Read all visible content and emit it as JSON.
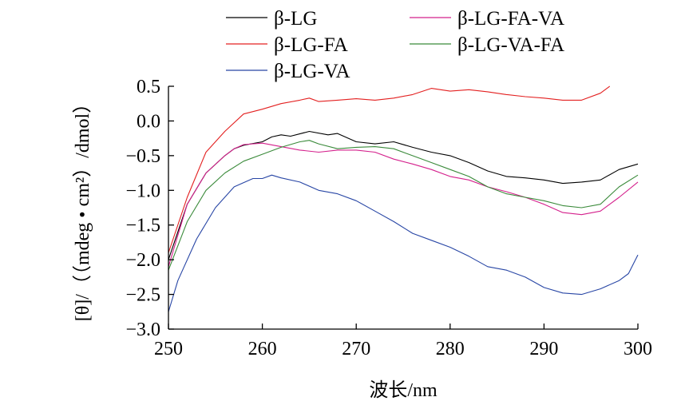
{
  "chart_data": {
    "type": "line",
    "xlabel": "波长/nm",
    "ylabel": "[θ]/（（mdeg • cm²）/dmol）",
    "xlim": [
      250,
      300
    ],
    "ylim": [
      -3.0,
      0.5
    ],
    "xticks": [
      250,
      260,
      270,
      280,
      290,
      300
    ],
    "xtick_labels": [
      "250",
      "260",
      "270",
      "280",
      "290",
      "300"
    ],
    "yticks": [
      0.5,
      0.0,
      -0.5,
      -1.0,
      -1.5,
      -2.0,
      -2.5,
      -3.0
    ],
    "ytick_labels": [
      "0.5",
      "0.0",
      "−0.5",
      "−1.0",
      "−1.5",
      "−2.0",
      "−2.5",
      "−3.0"
    ],
    "grid": false,
    "legend_position": "top",
    "series": [
      {
        "name": "β-LG",
        "color": "#000000",
        "x": [
          250,
          252,
          254,
          256,
          257,
          258,
          260,
          261,
          262,
          263,
          265,
          267,
          268,
          270,
          272,
          274,
          276,
          278,
          280,
          282,
          284,
          286,
          288,
          290,
          292,
          294,
          296,
          298,
          300
        ],
        "y": [
          -2.0,
          -1.2,
          -0.75,
          -0.5,
          -0.4,
          -0.35,
          -0.3,
          -0.23,
          -0.2,
          -0.22,
          -0.15,
          -0.2,
          -0.18,
          -0.3,
          -0.33,
          -0.3,
          -0.38,
          -0.45,
          -0.5,
          -0.6,
          -0.72,
          -0.8,
          -0.82,
          -0.85,
          -0.9,
          -0.88,
          -0.85,
          -0.7,
          -0.62
        ]
      },
      {
        "name": "β-LG-FA",
        "color": "#e32020",
        "x": [
          250,
          252,
          254,
          256,
          258,
          260,
          262,
          264,
          265,
          266,
          268,
          270,
          272,
          274,
          276,
          278,
          280,
          282,
          284,
          286,
          288,
          290,
          292,
          294,
          296,
          297
        ],
        "y": [
          -1.9,
          -1.1,
          -0.45,
          -0.15,
          0.1,
          0.17,
          0.25,
          0.3,
          0.33,
          0.28,
          0.3,
          0.32,
          0.3,
          0.33,
          0.38,
          0.47,
          0.43,
          0.45,
          0.42,
          0.38,
          0.35,
          0.33,
          0.3,
          0.3,
          0.4,
          0.5
        ]
      },
      {
        "name": "β-LG-VA",
        "color": "#2846a5",
        "x": [
          250,
          251,
          253,
          255,
          257,
          259,
          260,
          261,
          262,
          264,
          266,
          268,
          270,
          272,
          274,
          276,
          278,
          280,
          282,
          284,
          286,
          288,
          290,
          292,
          294,
          296,
          298,
          299,
          300
        ],
        "y": [
          -2.75,
          -2.3,
          -1.7,
          -1.25,
          -0.95,
          -0.83,
          -0.83,
          -0.78,
          -0.82,
          -0.88,
          -1.0,
          -1.05,
          -1.15,
          -1.3,
          -1.45,
          -1.62,
          -1.72,
          -1.82,
          -1.95,
          -2.1,
          -2.15,
          -2.25,
          -2.4,
          -2.48,
          -2.5,
          -2.42,
          -2.3,
          -2.2,
          -1.93
        ]
      },
      {
        "name": "β-LG-FA-VA",
        "color": "#d4208c",
        "x": [
          250,
          252,
          254,
          256,
          257,
          258,
          260,
          262,
          264,
          266,
          268,
          270,
          272,
          274,
          276,
          278,
          280,
          282,
          284,
          286,
          288,
          290,
          292,
          294,
          296,
          298,
          300
        ],
        "y": [
          -2.1,
          -1.2,
          -0.75,
          -0.5,
          -0.4,
          -0.34,
          -0.32,
          -0.37,
          -0.42,
          -0.45,
          -0.42,
          -0.42,
          -0.45,
          -0.55,
          -0.62,
          -0.7,
          -0.8,
          -0.85,
          -0.95,
          -1.02,
          -1.1,
          -1.2,
          -1.32,
          -1.35,
          -1.3,
          -1.1,
          -0.88
        ]
      },
      {
        "name": "β-LG-VA-FA",
        "color": "#3a8a3a",
        "x": [
          250,
          252,
          254,
          256,
          258,
          260,
          262,
          264,
          265,
          266,
          268,
          270,
          272,
          274,
          276,
          278,
          280,
          282,
          284,
          286,
          288,
          290,
          292,
          294,
          296,
          298,
          300
        ],
        "y": [
          -2.15,
          -1.45,
          -1.0,
          -0.75,
          -0.58,
          -0.48,
          -0.38,
          -0.3,
          -0.28,
          -0.33,
          -0.4,
          -0.38,
          -0.37,
          -0.4,
          -0.5,
          -0.6,
          -0.7,
          -0.8,
          -0.95,
          -1.05,
          -1.1,
          -1.15,
          -1.22,
          -1.25,
          -1.2,
          -0.95,
          -0.78
        ]
      }
    ]
  }
}
